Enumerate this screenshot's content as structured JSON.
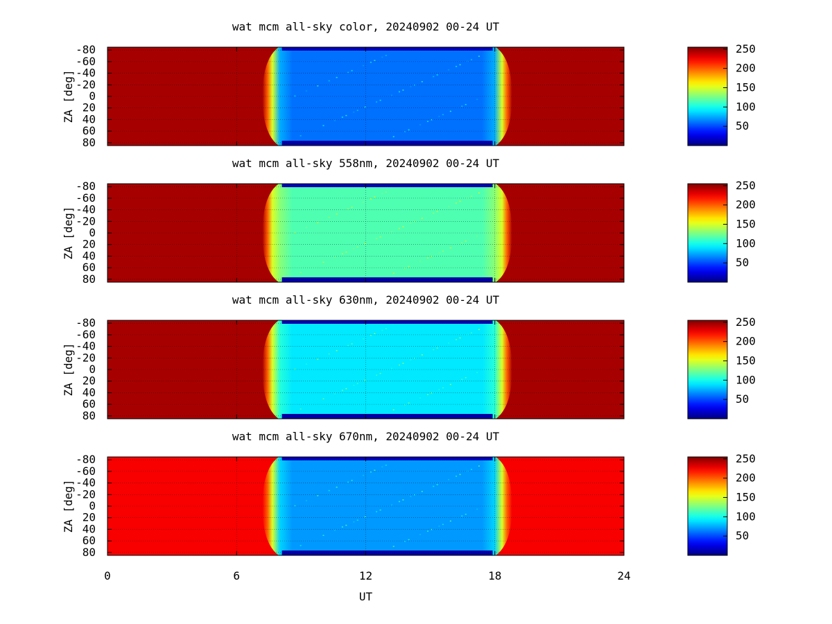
{
  "chart_data": [
    {
      "type": "heatmap",
      "title": "wat mcm all-sky color, 20240902 00-24 UT",
      "xlabel": "",
      "ylabel": "ZA [deg]",
      "xlim": [
        0,
        24
      ],
      "ylim": [
        -85,
        85
      ],
      "yticks": [
        "-80",
        "-60",
        "-40",
        "-20",
        "0",
        "20",
        "40",
        "60",
        "80"
      ],
      "colorbar": {
        "range": [
          0,
          255
        ],
        "ticks": [
          "250",
          "200",
          "150",
          "100",
          "50"
        ]
      },
      "grid": true,
      "dark_window_ut": [
        7.2,
        18.8
      ],
      "sky_value": 60,
      "background_value": 245
    },
    {
      "type": "heatmap",
      "title": "wat mcm all-sky 558nm, 20240902 00-24 UT",
      "xlabel": "",
      "ylabel": "ZA [deg]",
      "xlim": [
        0,
        24
      ],
      "ylim": [
        -85,
        85
      ],
      "yticks": [
        "-80",
        "-60",
        "-40",
        "-20",
        "0",
        "20",
        "40",
        "60",
        "80"
      ],
      "colorbar": {
        "range": [
          0,
          255
        ],
        "ticks": [
          "250",
          "200",
          "150",
          "100",
          "50"
        ]
      },
      "grid": true,
      "dark_window_ut": [
        7.2,
        18.8
      ],
      "sky_value": 115,
      "background_value": 245
    },
    {
      "type": "heatmap",
      "title": "wat mcm all-sky 630nm, 20240902 00-24 UT",
      "xlabel": "",
      "ylabel": "ZA [deg]",
      "xlim": [
        0,
        24
      ],
      "ylim": [
        -85,
        85
      ],
      "yticks": [
        "-80",
        "-60",
        "-40",
        "-20",
        "0",
        "20",
        "40",
        "60",
        "80"
      ],
      "colorbar": {
        "range": [
          0,
          255
        ],
        "ticks": [
          "250",
          "200",
          "150",
          "100",
          "50"
        ]
      },
      "grid": true,
      "dark_window_ut": [
        7.2,
        18.8
      ],
      "sky_value": 90,
      "background_value": 245
    },
    {
      "type": "heatmap",
      "title": "wat mcm all-sky 670nm, 20240902 00-24 UT",
      "xlabel": "UT",
      "ylabel": "ZA [deg]",
      "xlim": [
        0,
        24
      ],
      "ylim": [
        -85,
        85
      ],
      "xticks": [
        "0",
        "6",
        "12",
        "18",
        "24"
      ],
      "yticks": [
        "-80",
        "-60",
        "-40",
        "-20",
        "0",
        "20",
        "40",
        "60",
        "80"
      ],
      "colorbar": {
        "range": [
          0,
          255
        ],
        "ticks": [
          "250",
          "200",
          "150",
          "100",
          "50"
        ]
      },
      "grid": true,
      "dark_window_ut": [
        7.2,
        18.8
      ],
      "sky_value": 70,
      "background_value": 225
    }
  ],
  "colors": {
    "jet_low": "#00007f",
    "jet_mid": "#7fff7f",
    "jet_high": "#7f0000"
  }
}
